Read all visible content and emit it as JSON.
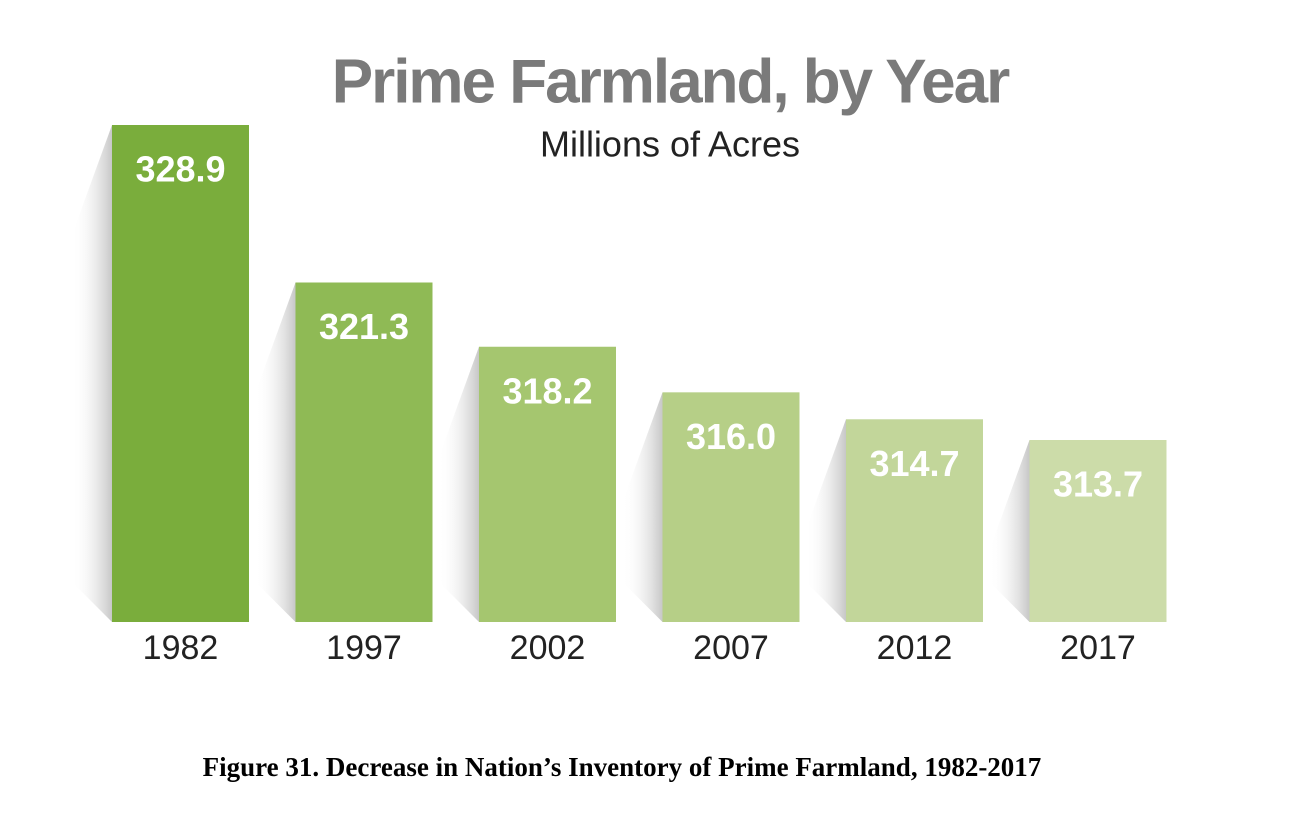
{
  "chart_data": {
    "type": "bar",
    "title": "Prime Farmland, by Year",
    "subtitle": "Millions of Acres",
    "caption": "Figure 31. Decrease in Nation’s Inventory of Prime Farmland, 1982-2017",
    "categories": [
      "1982",
      "1997",
      "2002",
      "2007",
      "2012",
      "2017"
    ],
    "values": [
      328.9,
      321.3,
      318.2,
      316.0,
      314.7,
      313.7
    ],
    "value_labels": [
      "328.9",
      "321.3",
      "318.2",
      "316.0",
      "314.7",
      "313.7"
    ],
    "colors": [
      "#7aad3c",
      "#8fba55",
      "#a5c66f",
      "#b6cf87",
      "#c2d69a",
      "#ccdca9"
    ]
  }
}
